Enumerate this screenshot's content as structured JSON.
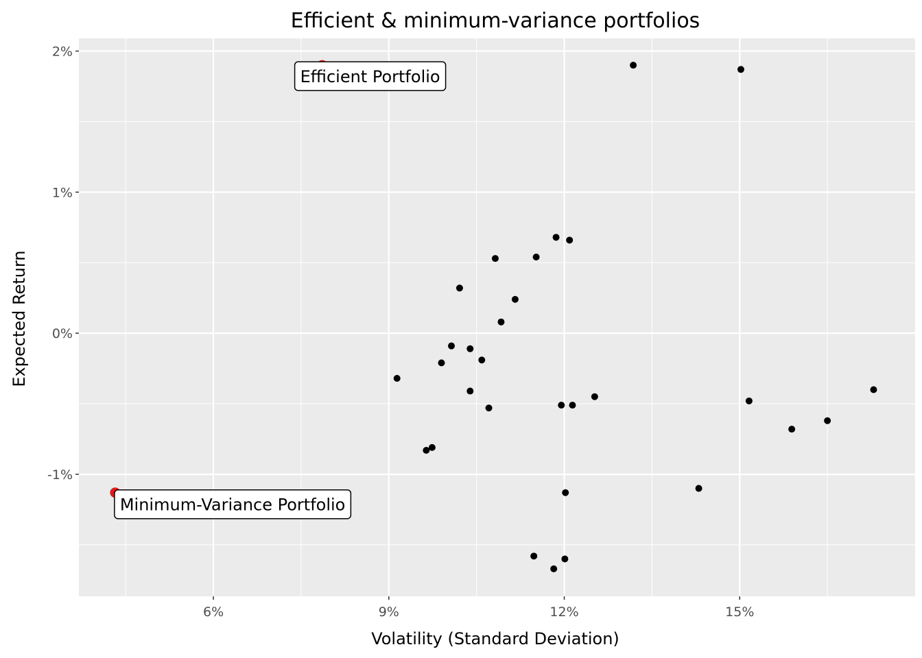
{
  "chart_data": {
    "type": "scatter",
    "title": "Efficient & minimum-variance portfolios",
    "xlabel": "Volatility (Standard Deviation)",
    "ylabel": "Expected Return",
    "xlim": [
      3.7,
      18.0
    ],
    "ylim": [
      -1.865,
      2.09
    ],
    "x_unit": "%",
    "y_unit": "%",
    "grid": true,
    "panel_background": "#ebebeb",
    "x_ticks": [
      6,
      9,
      12,
      15
    ],
    "x_tick_labels": [
      "6%",
      "9%",
      "12%",
      "15%"
    ],
    "x_minor_ticks": [
      4.5,
      7.5,
      10.5,
      13.5,
      16.5
    ],
    "y_ticks": [
      2,
      1,
      0,
      -1
    ],
    "y_tick_labels": [
      "2%",
      "1%",
      "0%",
      "-1%"
    ],
    "y_minor_ticks": [
      1.5,
      0.5,
      -0.5,
      -1.5
    ],
    "series": [
      {
        "color": "#000000",
        "points": [
          [
            13.18,
            1.9
          ],
          [
            15.02,
            1.87
          ],
          [
            11.86,
            0.68
          ],
          [
            12.09,
            0.66
          ],
          [
            10.82,
            0.53
          ],
          [
            11.52,
            0.54
          ],
          [
            10.21,
            0.32
          ],
          [
            11.16,
            0.24
          ],
          [
            10.92,
            0.08
          ],
          [
            10.07,
            -0.09
          ],
          [
            10.39,
            -0.11
          ],
          [
            9.9,
            -0.21
          ],
          [
            10.59,
            -0.19
          ],
          [
            9.14,
            -0.32
          ],
          [
            10.39,
            -0.41
          ],
          [
            10.71,
            -0.53
          ],
          [
            12.52,
            -0.45
          ],
          [
            11.95,
            -0.51
          ],
          [
            12.14,
            -0.51
          ],
          [
            9.74,
            -0.81
          ],
          [
            9.64,
            -0.83
          ],
          [
            17.29,
            -0.4
          ],
          [
            15.16,
            -0.48
          ],
          [
            15.89,
            -0.68
          ],
          [
            16.5,
            -0.62
          ],
          [
            14.3,
            -1.1
          ],
          [
            12.02,
            -1.13
          ],
          [
            11.48,
            -1.58
          ],
          [
            12.01,
            -1.6
          ],
          [
            11.82,
            -1.67
          ]
        ]
      },
      {
        "color": "#e41a1c",
        "points": [
          [
            7.86,
            1.9
          ],
          [
            4.32,
            -1.13
          ]
        ],
        "labels": [
          "Efficient Portfolio",
          "Minimum-Variance Portfolio"
        ]
      }
    ]
  }
}
